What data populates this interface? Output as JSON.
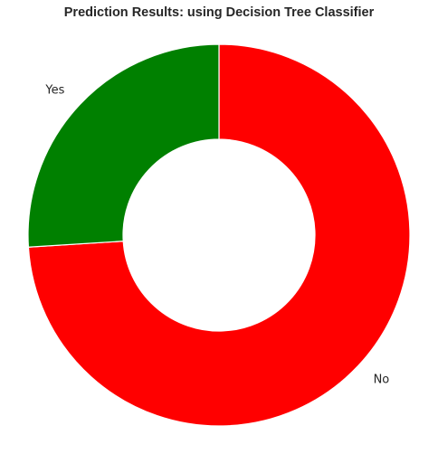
{
  "chart_data": {
    "type": "pie",
    "style": "donut",
    "title": "Prediction Results: using Decision Tree Classifier",
    "slices": [
      {
        "label": "No",
        "value": 74,
        "color": "#ff0000"
      },
      {
        "label": "Yes",
        "value": 26,
        "color": "#008000"
      }
    ],
    "start_angle": "top",
    "direction": "clockwise",
    "legend": "none"
  }
}
